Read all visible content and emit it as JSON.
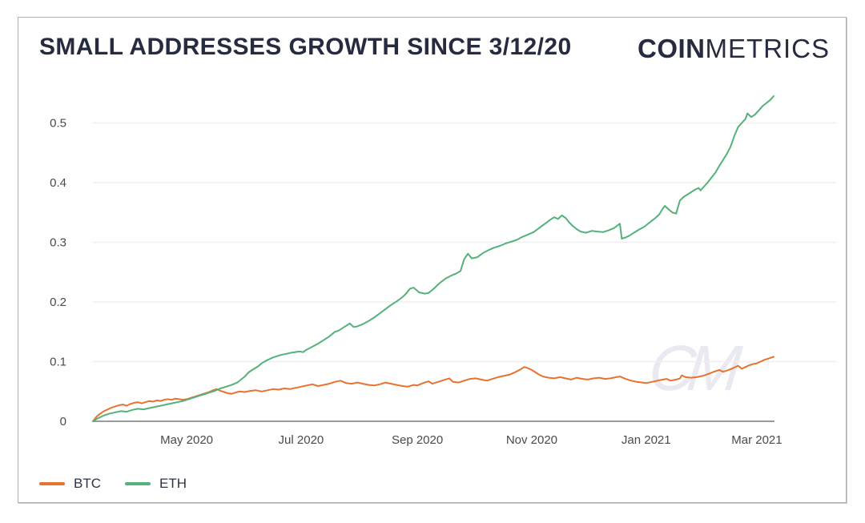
{
  "header": {
    "title": "SMALL ADDRESSES GROWTH SINCE 3/12/20",
    "logo_bold": "COIN",
    "logo_light": "METRICS"
  },
  "watermark": "CM",
  "colors": {
    "btc": "#e8722f",
    "eth": "#55b17a",
    "title_text": "#262b40",
    "axis_text": "#4a4a4a",
    "gridline": "#efeff1",
    "axis_line": "#9b9b9b",
    "card_border": "#aeaeb0",
    "watermark": "#e9e9f1"
  },
  "legend": [
    {
      "label": "BTC",
      "color": "#e8722f"
    },
    {
      "label": "ETH",
      "color": "#55b17a"
    }
  ],
  "chart_data": {
    "type": "line",
    "title": "SMALL ADDRESSES GROWTH SINCE 3/12/20",
    "x_unit": "days since 2020-03-12",
    "xlim": [
      0,
      363
    ],
    "ylim": [
      0,
      0.56
    ],
    "grid": "horizontal",
    "legend_position": "bottom-left",
    "y_ticks": [
      0,
      0.1,
      0.2,
      0.3,
      0.4,
      0.5
    ],
    "x_ticks": [
      {
        "label": "May 2020",
        "day": 50
      },
      {
        "label": "Jul 2020",
        "day": 111
      },
      {
        "label": "Sep 2020",
        "day": 173
      },
      {
        "label": "Nov 2020",
        "day": 234
      },
      {
        "label": "Jan 2021",
        "day": 295
      },
      {
        "label": "Mar 2021",
        "day": 354
      }
    ],
    "series": [
      {
        "name": "BTC",
        "color": "#e8722f",
        "points": [
          [
            0,
            0
          ],
          [
            2,
            0.008
          ],
          [
            4,
            0.013
          ],
          [
            6,
            0.017
          ],
          [
            8,
            0.02
          ],
          [
            10,
            0.023
          ],
          [
            12,
            0.025
          ],
          [
            14,
            0.027
          ],
          [
            16,
            0.028
          ],
          [
            18,
            0.026
          ],
          [
            20,
            0.029
          ],
          [
            22,
            0.031
          ],
          [
            24,
            0.032
          ],
          [
            26,
            0.03
          ],
          [
            28,
            0.032
          ],
          [
            30,
            0.034
          ],
          [
            32,
            0.033
          ],
          [
            34,
            0.035
          ],
          [
            36,
            0.034
          ],
          [
            38,
            0.036
          ],
          [
            40,
            0.037
          ],
          [
            42,
            0.036
          ],
          [
            44,
            0.038
          ],
          [
            46,
            0.037
          ],
          [
            48,
            0.036
          ],
          [
            50,
            0.037
          ],
          [
            52,
            0.039
          ],
          [
            54,
            0.041
          ],
          [
            56,
            0.043
          ],
          [
            58,
            0.045
          ],
          [
            60,
            0.047
          ],
          [
            62,
            0.049
          ],
          [
            64,
            0.052
          ],
          [
            66,
            0.054
          ],
          [
            68,
            0.051
          ],
          [
            70,
            0.049
          ],
          [
            72,
            0.047
          ],
          [
            74,
            0.046
          ],
          [
            76,
            0.048
          ],
          [
            78,
            0.05
          ],
          [
            81,
            0.049
          ],
          [
            84,
            0.051
          ],
          [
            87,
            0.052
          ],
          [
            90,
            0.05
          ],
          [
            93,
            0.052
          ],
          [
            96,
            0.054
          ],
          [
            99,
            0.053
          ],
          [
            102,
            0.055
          ],
          [
            105,
            0.054
          ],
          [
            108,
            0.056
          ],
          [
            111,
            0.058
          ],
          [
            114,
            0.06
          ],
          [
            117,
            0.062
          ],
          [
            120,
            0.059
          ],
          [
            123,
            0.061
          ],
          [
            126,
            0.063
          ],
          [
            129,
            0.066
          ],
          [
            132,
            0.068
          ],
          [
            135,
            0.064
          ],
          [
            138,
            0.063
          ],
          [
            141,
            0.065
          ],
          [
            144,
            0.063
          ],
          [
            147,
            0.061
          ],
          [
            150,
            0.06
          ],
          [
            153,
            0.062
          ],
          [
            156,
            0.065
          ],
          [
            159,
            0.063
          ],
          [
            162,
            0.061
          ],
          [
            165,
            0.059
          ],
          [
            168,
            0.058
          ],
          [
            171,
            0.061
          ],
          [
            173,
            0.06
          ],
          [
            176,
            0.064
          ],
          [
            179,
            0.067
          ],
          [
            181,
            0.063
          ],
          [
            184,
            0.066
          ],
          [
            187,
            0.069
          ],
          [
            190,
            0.072
          ],
          [
            192,
            0.066
          ],
          [
            195,
            0.065
          ],
          [
            198,
            0.068
          ],
          [
            201,
            0.071
          ],
          [
            204,
            0.072
          ],
          [
            207,
            0.07
          ],
          [
            210,
            0.068
          ],
          [
            213,
            0.071
          ],
          [
            216,
            0.074
          ],
          [
            219,
            0.076
          ],
          [
            222,
            0.078
          ],
          [
            225,
            0.082
          ],
          [
            228,
            0.087
          ],
          [
            230,
            0.091
          ],
          [
            232,
            0.089
          ],
          [
            234,
            0.086
          ],
          [
            236,
            0.082
          ],
          [
            238,
            0.078
          ],
          [
            240,
            0.075
          ],
          [
            243,
            0.073
          ],
          [
            246,
            0.072
          ],
          [
            249,
            0.074
          ],
          [
            252,
            0.072
          ],
          [
            255,
            0.07
          ],
          [
            258,
            0.073
          ],
          [
            261,
            0.071
          ],
          [
            264,
            0.07
          ],
          [
            267,
            0.072
          ],
          [
            270,
            0.073
          ],
          [
            273,
            0.071
          ],
          [
            276,
            0.072
          ],
          [
            279,
            0.074
          ],
          [
            281,
            0.075
          ],
          [
            284,
            0.071
          ],
          [
            287,
            0.068
          ],
          [
            290,
            0.066
          ],
          [
            293,
            0.065
          ],
          [
            295,
            0.064
          ],
          [
            298,
            0.066
          ],
          [
            301,
            0.068
          ],
          [
            304,
            0.07
          ],
          [
            306,
            0.071
          ],
          [
            308,
            0.068
          ],
          [
            311,
            0.07
          ],
          [
            313,
            0.072
          ],
          [
            314,
            0.077
          ],
          [
            316,
            0.074
          ],
          [
            319,
            0.073
          ],
          [
            322,
            0.074
          ],
          [
            325,
            0.076
          ],
          [
            328,
            0.079
          ],
          [
            331,
            0.083
          ],
          [
            334,
            0.086
          ],
          [
            336,
            0.083
          ],
          [
            339,
            0.086
          ],
          [
            342,
            0.09
          ],
          [
            344,
            0.093
          ],
          [
            346,
            0.088
          ],
          [
            348,
            0.091
          ],
          [
            350,
            0.094
          ],
          [
            352,
            0.096
          ],
          [
            354,
            0.097
          ],
          [
            356,
            0.1
          ],
          [
            358,
            0.103
          ],
          [
            360,
            0.105
          ],
          [
            363,
            0.108
          ]
        ]
      },
      {
        "name": "ETH",
        "color": "#55b17a",
        "points": [
          [
            0,
            0
          ],
          [
            2,
            0.004
          ],
          [
            4,
            0.007
          ],
          [
            6,
            0.01
          ],
          [
            9,
            0.013
          ],
          [
            12,
            0.015
          ],
          [
            15,
            0.017
          ],
          [
            18,
            0.016
          ],
          [
            21,
            0.019
          ],
          [
            24,
            0.021
          ],
          [
            27,
            0.02
          ],
          [
            30,
            0.022
          ],
          [
            33,
            0.024
          ],
          [
            36,
            0.026
          ],
          [
            39,
            0.028
          ],
          [
            42,
            0.03
          ],
          [
            45,
            0.032
          ],
          [
            48,
            0.034
          ],
          [
            50,
            0.036
          ],
          [
            53,
            0.039
          ],
          [
            56,
            0.042
          ],
          [
            59,
            0.045
          ],
          [
            62,
            0.048
          ],
          [
            65,
            0.051
          ],
          [
            68,
            0.055
          ],
          [
            71,
            0.058
          ],
          [
            74,
            0.061
          ],
          [
            77,
            0.065
          ],
          [
            79,
            0.07
          ],
          [
            81,
            0.075
          ],
          [
            83,
            0.082
          ],
          [
            85,
            0.086
          ],
          [
            88,
            0.092
          ],
          [
            90,
            0.097
          ],
          [
            92,
            0.101
          ],
          [
            94,
            0.104
          ],
          [
            96,
            0.107
          ],
          [
            98,
            0.109
          ],
          [
            100,
            0.111
          ],
          [
            103,
            0.113
          ],
          [
            106,
            0.115
          ],
          [
            108,
            0.116
          ],
          [
            110,
            0.117
          ],
          [
            112,
            0.116
          ],
          [
            114,
            0.12
          ],
          [
            117,
            0.125
          ],
          [
            120,
            0.13
          ],
          [
            123,
            0.136
          ],
          [
            126,
            0.142
          ],
          [
            129,
            0.15
          ],
          [
            131,
            0.152
          ],
          [
            134,
            0.158
          ],
          [
            137,
            0.164
          ],
          [
            139,
            0.158
          ],
          [
            141,
            0.159
          ],
          [
            144,
            0.163
          ],
          [
            147,
            0.168
          ],
          [
            150,
            0.174
          ],
          [
            153,
            0.181
          ],
          [
            156,
            0.188
          ],
          [
            159,
            0.195
          ],
          [
            162,
            0.201
          ],
          [
            165,
            0.208
          ],
          [
            167,
            0.214
          ],
          [
            169,
            0.222
          ],
          [
            171,
            0.224
          ],
          [
            174,
            0.216
          ],
          [
            177,
            0.214
          ],
          [
            179,
            0.215
          ],
          [
            182,
            0.223
          ],
          [
            185,
            0.232
          ],
          [
            188,
            0.239
          ],
          [
            191,
            0.244
          ],
          [
            194,
            0.248
          ],
          [
            196,
            0.252
          ],
          [
            198,
            0.272
          ],
          [
            200,
            0.281
          ],
          [
            202,
            0.273
          ],
          [
            205,
            0.275
          ],
          [
            208,
            0.282
          ],
          [
            211,
            0.287
          ],
          [
            214,
            0.291
          ],
          [
            217,
            0.294
          ],
          [
            220,
            0.298
          ],
          [
            223,
            0.301
          ],
          [
            226,
            0.304
          ],
          [
            229,
            0.309
          ],
          [
            232,
            0.313
          ],
          [
            235,
            0.317
          ],
          [
            238,
            0.324
          ],
          [
            241,
            0.331
          ],
          [
            244,
            0.338
          ],
          [
            246,
            0.342
          ],
          [
            248,
            0.339
          ],
          [
            250,
            0.345
          ],
          [
            252,
            0.341
          ],
          [
            254,
            0.333
          ],
          [
            256,
            0.327
          ],
          [
            258,
            0.322
          ],
          [
            260,
            0.318
          ],
          [
            263,
            0.316
          ],
          [
            266,
            0.319
          ],
          [
            269,
            0.318
          ],
          [
            272,
            0.317
          ],
          [
            275,
            0.32
          ],
          [
            278,
            0.324
          ],
          [
            280,
            0.329
          ],
          [
            281,
            0.331
          ],
          [
            282,
            0.306
          ],
          [
            284,
            0.308
          ],
          [
            286,
            0.311
          ],
          [
            288,
            0.315
          ],
          [
            291,
            0.321
          ],
          [
            294,
            0.326
          ],
          [
            296,
            0.331
          ],
          [
            298,
            0.336
          ],
          [
            300,
            0.341
          ],
          [
            302,
            0.347
          ],
          [
            304,
            0.357
          ],
          [
            305,
            0.361
          ],
          [
            307,
            0.355
          ],
          [
            309,
            0.35
          ],
          [
            311,
            0.348
          ],
          [
            313,
            0.37
          ],
          [
            315,
            0.376
          ],
          [
            317,
            0.38
          ],
          [
            319,
            0.384
          ],
          [
            321,
            0.388
          ],
          [
            323,
            0.391
          ],
          [
            324,
            0.387
          ],
          [
            326,
            0.394
          ],
          [
            328,
            0.401
          ],
          [
            330,
            0.409
          ],
          [
            332,
            0.417
          ],
          [
            334,
            0.428
          ],
          [
            336,
            0.438
          ],
          [
            338,
            0.448
          ],
          [
            340,
            0.46
          ],
          [
            342,
            0.478
          ],
          [
            344,
            0.493
          ],
          [
            346,
            0.5
          ],
          [
            348,
            0.507
          ],
          [
            349,
            0.516
          ],
          [
            351,
            0.51
          ],
          [
            353,
            0.514
          ],
          [
            355,
            0.521
          ],
          [
            357,
            0.528
          ],
          [
            359,
            0.533
          ],
          [
            361,
            0.538
          ],
          [
            363,
            0.545
          ]
        ]
      }
    ]
  }
}
